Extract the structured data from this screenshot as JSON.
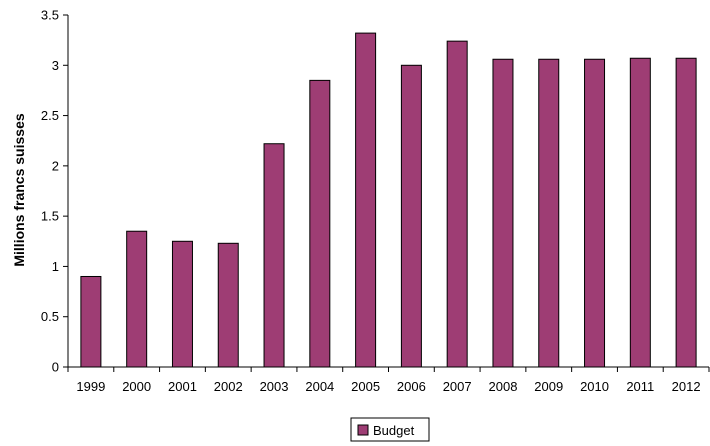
{
  "chart_data": {
    "type": "bar",
    "categories": [
      "1999",
      "2000",
      "2001",
      "2002",
      "2003",
      "2004",
      "2005",
      "2006",
      "2007",
      "2008",
      "2009",
      "2010",
      "2011",
      "2012"
    ],
    "series": [
      {
        "name": "Budget",
        "color": "#9e3d74",
        "values": [
          0.9,
          1.35,
          1.25,
          1.23,
          2.22,
          2.85,
          3.32,
          3.0,
          3.24,
          3.06,
          3.06,
          3.06,
          3.07,
          3.07
        ]
      }
    ],
    "title": "",
    "xlabel": "",
    "ylabel": "Millions francs suisses",
    "ylim": [
      0,
      3.5
    ],
    "yticks": [
      "0",
      "0.5",
      "1",
      "1.5",
      "2",
      "2.5",
      "3",
      "3.5"
    ],
    "grid": false,
    "legend": "bottom-center"
  }
}
